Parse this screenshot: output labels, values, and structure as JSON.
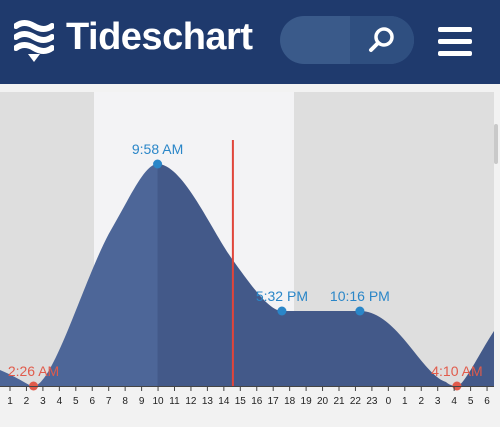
{
  "app": {
    "brand": "Tideschart",
    "search_placeholder": "",
    "colors": {
      "header": "#1f3a6d",
      "accent": "#2a86c8",
      "low": "#e15b4b",
      "fill": "#4d6698"
    }
  },
  "chart_data": {
    "type": "area",
    "x_ticks": [
      "1",
      "2",
      "3",
      "4",
      "5",
      "6",
      "7",
      "8",
      "9",
      "10",
      "11",
      "12",
      "13",
      "14",
      "15",
      "16",
      "17",
      "18",
      "19",
      "20",
      "21",
      "22",
      "23",
      "0",
      "1",
      "2",
      "3",
      "4",
      "5",
      "6"
    ],
    "tide_events": [
      {
        "time": "2:26 AM",
        "hour": 2.43,
        "kind": "low"
      },
      {
        "time": "9:58 AM",
        "hour": 9.97,
        "kind": "high"
      },
      {
        "time": "5:32 PM",
        "hour": 17.53,
        "kind": "high"
      },
      {
        "time": "10:16 PM",
        "hour": 22.27,
        "kind": "high"
      },
      {
        "time": "4:10 AM",
        "hour": 28.17,
        "kind": "low"
      }
    ],
    "now_hour": 14.55
  }
}
